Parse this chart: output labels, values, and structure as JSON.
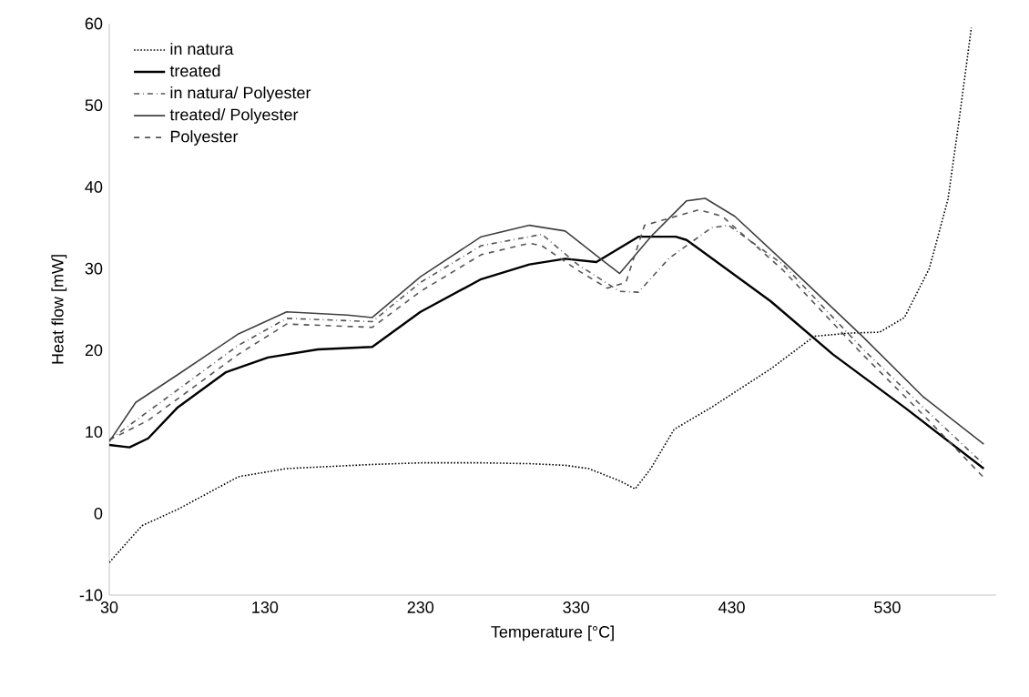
{
  "chart_data": {
    "type": "line",
    "xlabel": "Temperature [°C]",
    "ylabel": "Heat flow [mW]",
    "xlim": [
      30,
      600
    ],
    "xticks": [
      30,
      130,
      230,
      330,
      430,
      530
    ],
    "ylim": [
      -10,
      60
    ],
    "yticks": [
      -10,
      0,
      10,
      20,
      30,
      40,
      50,
      60
    ],
    "grid": false,
    "legend": "top left",
    "marker": "none",
    "series": [
      {
        "name": "in natura",
        "color": "#000000",
        "line_style": "dotted",
        "x": [
          30,
          51,
          74,
          113,
          144,
          199,
          230,
          269,
          300,
          323,
          338,
          358,
          368,
          378,
          393,
          417,
          455,
          483,
          506,
          525,
          541,
          557,
          569,
          576,
          584
        ],
        "values": [
          -6,
          -1.5,
          0.5,
          4.5,
          5.5,
          6,
          6.2,
          6.2,
          6.1,
          5.9,
          5.5,
          4,
          3,
          5.5,
          10.3,
          13,
          17.7,
          21.7,
          22.1,
          22.2,
          24,
          30,
          38.5,
          48,
          59.5
        ]
      },
      {
        "name": "treated",
        "color": "#000000",
        "line_style": "solid",
        "x": [
          30,
          43,
          55,
          74,
          105,
          132,
          164,
          199,
          230,
          269,
          300,
          323,
          343,
          370,
          394,
          401,
          455,
          495,
          541,
          592
        ],
        "values": [
          8.4,
          8.1,
          9.2,
          13,
          17.3,
          19.1,
          20.1,
          20.4,
          24.7,
          28.7,
          30.5,
          31.2,
          30.8,
          33.9,
          33.9,
          33.5,
          26,
          19.5,
          13,
          5.5
        ]
      },
      {
        "name": "in natura/ Polyester",
        "color": "#555555",
        "line_style": "dashdot",
        "x": [
          30,
          55,
          113,
          144,
          199,
          230,
          269,
          300,
          308,
          331,
          358,
          370,
          390,
          417,
          428,
          463,
          514,
          553,
          592
        ],
        "values": [
          9,
          12.5,
          20.6,
          23.9,
          23.5,
          28.3,
          32.8,
          33.9,
          34.2,
          30.5,
          27.2,
          27.1,
          31.3,
          35,
          35.3,
          30.5,
          20.2,
          13,
          6
        ]
      },
      {
        "name": "treated/ Polyester",
        "color": "#404040",
        "line_style": "solid",
        "x": [
          30,
          47,
          74,
          113,
          144,
          183,
          199,
          230,
          269,
          300,
          323,
          347,
          358,
          378,
          401,
          413,
          432,
          467,
          514,
          553,
          592
        ],
        "values": [
          8.8,
          13.6,
          17,
          22,
          24.7,
          24.3,
          24,
          29,
          33.9,
          35.3,
          34.6,
          31,
          29.4,
          33.9,
          38.3,
          38.6,
          36.4,
          30.2,
          21.7,
          14.3,
          8.5
        ]
      },
      {
        "name": "Polyester",
        "color": "#555555",
        "line_style": "dashed",
        "x": [
          30,
          55,
          113,
          144,
          199,
          230,
          269,
          300,
          308,
          331,
          350,
          362,
          374,
          409,
          424,
          463,
          514,
          553,
          592
        ],
        "values": [
          9,
          11.4,
          19.5,
          23.2,
          22.8,
          27.2,
          31.7,
          33.1,
          32.8,
          29.8,
          27.6,
          28.3,
          35.3,
          37.2,
          36.4,
          29.8,
          19.5,
          12.1,
          4.4
        ]
      }
    ]
  }
}
